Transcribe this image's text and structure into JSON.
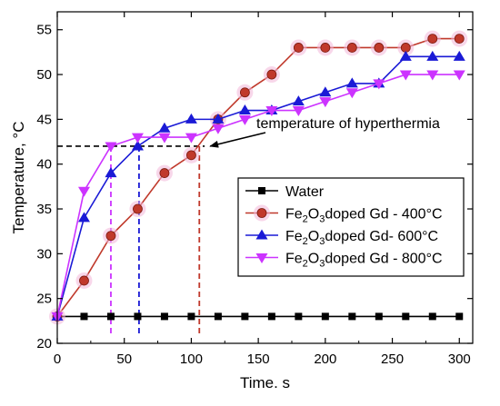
{
  "chart_data": {
    "type": "line",
    "xlabel": "Time. s",
    "ylabel": "Temperature, °C",
    "xlim": [
      0,
      310
    ],
    "ylim": [
      20,
      57
    ],
    "xticks": [
      0,
      50,
      100,
      150,
      200,
      250,
      300
    ],
    "yticks": [
      20,
      25,
      30,
      35,
      40,
      45,
      50,
      55
    ],
    "x": [
      0,
      20,
      40,
      60,
      80,
      100,
      120,
      140,
      160,
      180,
      200,
      220,
      240,
      260,
      280,
      300
    ],
    "series": [
      {
        "name": "Water",
        "marker": "square",
        "color": "#000000",
        "values": [
          23,
          23,
          23,
          23,
          23,
          23,
          23,
          23,
          23,
          23,
          23,
          23,
          23,
          23,
          23,
          23
        ]
      },
      {
        "name": "Fe2O3doped Gd - 400°C",
        "marker": "circle",
        "color": "#c0392b",
        "values": [
          23,
          27,
          32,
          35,
          39,
          41,
          45,
          48,
          50,
          53,
          53,
          53,
          53,
          53,
          54,
          54
        ]
      },
      {
        "name": "Fe2O3doped Gd- 600°C",
        "marker": "triangle-up",
        "color": "#1a1ad6",
        "values": [
          23,
          34,
          39,
          42,
          44,
          45,
          45,
          46,
          46,
          47,
          48,
          49,
          49,
          52,
          52,
          52
        ]
      },
      {
        "name": "Fe2O3doped Gd - 800°C",
        "marker": "triangle-down",
        "color": "#cc33ff",
        "values": [
          23,
          37,
          42,
          43,
          43,
          43,
          44,
          45,
          46,
          46,
          47,
          48,
          49,
          50,
          50,
          50
        ]
      }
    ],
    "annotation": {
      "text": "temperature of hyperthermia",
      "y": 42,
      "target_x": 110
    },
    "reference_lines": {
      "horizontal_y": 42,
      "horizontal_x_end": 110,
      "vertical": [
        {
          "x": 40,
          "color": "#cc33ff"
        },
        {
          "x": 61,
          "color": "#1a1ad6"
        },
        {
          "x": 106,
          "color": "#c0392b"
        }
      ]
    },
    "legend_position": "center-right",
    "grid": false
  }
}
